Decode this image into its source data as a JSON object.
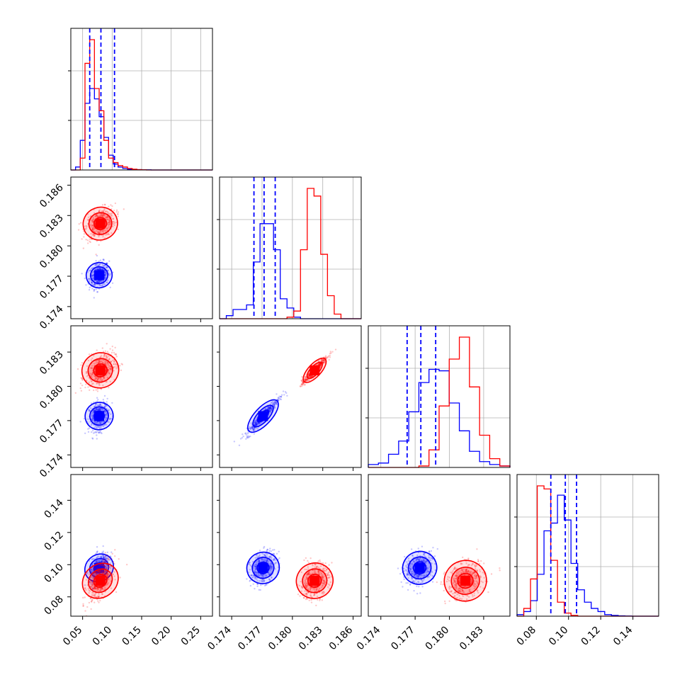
{
  "chart_data": {
    "type": "corner",
    "n_params": 4,
    "grid": true,
    "series": [
      {
        "color": "#0000ff",
        "hist": [
          [
            0,
            2,
            20,
            45,
            55,
            48,
            36,
            22,
            10,
            4,
            2,
            1,
            0.5,
            0.3,
            0.2,
            0.1,
            0.1,
            0,
            0,
            0,
            0,
            0,
            0,
            0,
            0,
            0,
            0,
            0,
            0,
            0
          ],
          [
            0,
            2,
            6,
            6,
            9,
            37,
            62,
            62,
            45,
            13,
            7,
            1,
            0,
            0,
            0,
            0,
            0,
            0,
            0,
            0,
            0
          ],
          [
            2,
            3,
            9,
            18,
            38,
            58,
            67,
            66,
            44,
            25,
            11,
            4,
            2,
            1
          ],
          [
            1,
            3,
            10,
            27,
            55,
            60,
            78,
            62,
            34,
            17,
            9,
            5,
            3,
            1,
            0.5,
            0.2,
            0.1,
            0,
            0,
            0,
            0
          ]
        ],
        "quantiles": [
          [
            0.062,
            0.081,
            0.104
          ],
          [
            0.1762,
            0.1772,
            0.1783
          ],
          [
            0.1763,
            0.1775,
            0.1788
          ],
          [
            0.089,
            0.098,
            0.105
          ]
        ],
        "centers": [
          0.078,
          0.1771,
          0.1774,
          0.098
        ]
      },
      {
        "color": "#ff0000",
        "hist": [
          [
            0,
            0,
            8,
            72,
            88,
            55,
            40,
            20,
            8,
            5,
            3,
            2,
            1,
            0.5,
            0.2,
            0.1,
            0,
            0,
            0,
            0,
            0,
            0,
            0,
            0,
            0,
            0,
            0,
            0,
            0,
            0
          ],
          [
            0,
            0,
            0,
            0,
            0,
            0,
            0,
            0,
            0,
            0,
            1,
            5,
            45,
            85,
            80,
            42,
            15,
            3,
            0,
            0,
            0
          ],
          [
            0,
            0,
            0,
            0,
            0,
            1,
            12,
            42,
            74,
            89,
            55,
            22,
            6,
            1
          ],
          [
            0,
            5,
            24,
            84,
            82,
            36,
            9,
            2,
            0.5,
            0,
            0,
            0,
            0,
            0,
            0,
            0,
            0,
            0,
            0,
            0,
            0
          ]
        ],
        "centers": [
          0.08,
          0.1822,
          0.1814,
          0.09
        ]
      }
    ],
    "axes": [
      {
        "ticks": [
          0.05,
          0.1,
          0.15,
          0.2,
          0.25
        ],
        "labels": [
          "0.05",
          "0.10",
          "0.15",
          "0.20",
          "0.25"
        ]
      },
      {
        "ticks": [
          0.174,
          0.177,
          0.18,
          0.183,
          0.186
        ],
        "labels": [
          "0.174",
          "0.177",
          "0.180",
          "0.183",
          "0.186"
        ]
      },
      {
        "ticks": [
          0.174,
          0.177,
          0.18,
          0.183
        ],
        "labels": [
          "0.174",
          "0.177",
          "0.180",
          "0.183"
        ]
      },
      {
        "ticks": [
          0.08,
          0.1,
          0.12,
          0.14
        ],
        "labels": [
          "0.08",
          "0.10",
          "0.12",
          "0.14"
        ]
      }
    ],
    "ranges": [
      [
        0.03,
        0.27
      ],
      [
        0.1728,
        0.1868
      ],
      [
        0.1729,
        0.1853
      ],
      [
        0.068,
        0.156
      ]
    ]
  }
}
